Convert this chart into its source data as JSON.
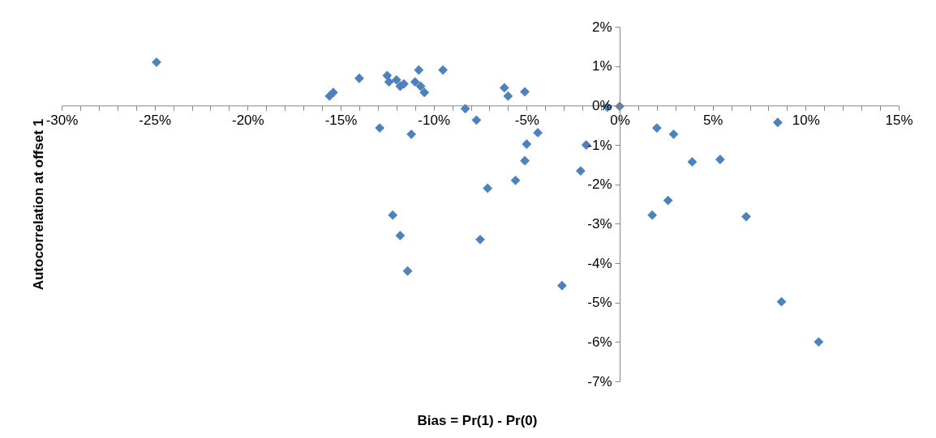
{
  "chart_data": {
    "type": "scatter",
    "xlabel": "Bias = Pr(1) - Pr(0)",
    "ylabel": "Autocorrelation at offset 1",
    "marker": "diamond",
    "grid": false,
    "xlim": [
      -30,
      15
    ],
    "ylim": [
      -7,
      2
    ],
    "xticks": [
      {
        "value": -30,
        "label": "-30%"
      },
      {
        "value": -29,
        "label": null
      },
      {
        "value": -28,
        "label": null
      },
      {
        "value": -27,
        "label": null
      },
      {
        "value": -26,
        "label": null
      },
      {
        "value": -25,
        "label": "-25%"
      },
      {
        "value": -24,
        "label": null
      },
      {
        "value": -23,
        "label": null
      },
      {
        "value": -22,
        "label": null
      },
      {
        "value": -21,
        "label": null
      },
      {
        "value": -20,
        "label": "-20%"
      },
      {
        "value": -19,
        "label": null
      },
      {
        "value": -18,
        "label": null
      },
      {
        "value": -17,
        "label": null
      },
      {
        "value": -16,
        "label": null
      },
      {
        "value": -15,
        "label": "-15%"
      },
      {
        "value": -14,
        "label": null
      },
      {
        "value": -13,
        "label": null
      },
      {
        "value": -12,
        "label": null
      },
      {
        "value": -11,
        "label": null
      },
      {
        "value": -10,
        "label": "-10%"
      },
      {
        "value": -9,
        "label": null
      },
      {
        "value": -8,
        "label": null
      },
      {
        "value": -7,
        "label": null
      },
      {
        "value": -6,
        "label": null
      },
      {
        "value": -5,
        "label": "-5%"
      },
      {
        "value": -4,
        "label": null
      },
      {
        "value": -3,
        "label": null
      },
      {
        "value": -2,
        "label": null
      },
      {
        "value": -1,
        "label": null
      },
      {
        "value": 0,
        "label": "0%"
      },
      {
        "value": 1,
        "label": null
      },
      {
        "value": 2,
        "label": null
      },
      {
        "value": 3,
        "label": null
      },
      {
        "value": 4,
        "label": null
      },
      {
        "value": 5,
        "label": "5%"
      },
      {
        "value": 6,
        "label": null
      },
      {
        "value": 7,
        "label": null
      },
      {
        "value": 8,
        "label": null
      },
      {
        "value": 9,
        "label": null
      },
      {
        "value": 10,
        "label": "10%"
      },
      {
        "value": 11,
        "label": null
      },
      {
        "value": 12,
        "label": null
      },
      {
        "value": 13,
        "label": null
      },
      {
        "value": 14,
        "label": null
      },
      {
        "value": 15,
        "label": "15%"
      }
    ],
    "yticks": [
      {
        "value": 2,
        "label": "2%"
      },
      {
        "value": 1,
        "label": "1%"
      },
      {
        "value": 0,
        "label": "0%"
      },
      {
        "value": -1,
        "label": "-1%"
      },
      {
        "value": -2,
        "label": "-2%"
      },
      {
        "value": -3,
        "label": "-3%"
      },
      {
        "value": -4,
        "label": "-4%"
      },
      {
        "value": -5,
        "label": "-5%"
      },
      {
        "value": -6,
        "label": "-6%"
      },
      {
        "value": -7,
        "label": "-7%"
      }
    ],
    "series": [
      {
        "color": "#4f81bd",
        "x": [
          -24.9,
          -15.6,
          -15.4,
          -14.0,
          -12.9,
          -12.5,
          -12.4,
          -12.0,
          -11.8,
          -11.6,
          -12.2,
          -11.8,
          -11.4,
          -11.2,
          -11.0,
          -10.8,
          -10.7,
          -10.5,
          -9.5,
          -8.3,
          -7.7,
          -7.5,
          -7.1,
          -6.2,
          -6.0,
          -5.1,
          -5.6,
          -5.1,
          -5.0,
          -4.4,
          -3.1,
          -2.1,
          -1.8,
          -0.66,
          0.0,
          2.0,
          1.75,
          2.6,
          2.9,
          3.9,
          5.4,
          6.8,
          8.5,
          8.7,
          10.7
        ],
        "values": [
          1.1,
          0.24,
          0.33,
          0.69,
          -0.57,
          0.76,
          0.6,
          0.65,
          0.49,
          0.55,
          -2.78,
          -3.3,
          -4.2,
          -0.73,
          0.6,
          0.9,
          0.49,
          0.33,
          0.9,
          -0.08,
          -0.37,
          -3.4,
          -2.1,
          0.45,
          0.24,
          0.35,
          -1.9,
          -1.4,
          -0.98,
          -0.69,
          -4.57,
          -1.66,
          -1.0,
          -0.04,
          -0.02,
          -0.57,
          -2.78,
          -2.41,
          -0.73,
          -1.43,
          -1.37,
          -2.82,
          -0.43,
          -4.98,
          -6.0
        ]
      }
    ]
  }
}
